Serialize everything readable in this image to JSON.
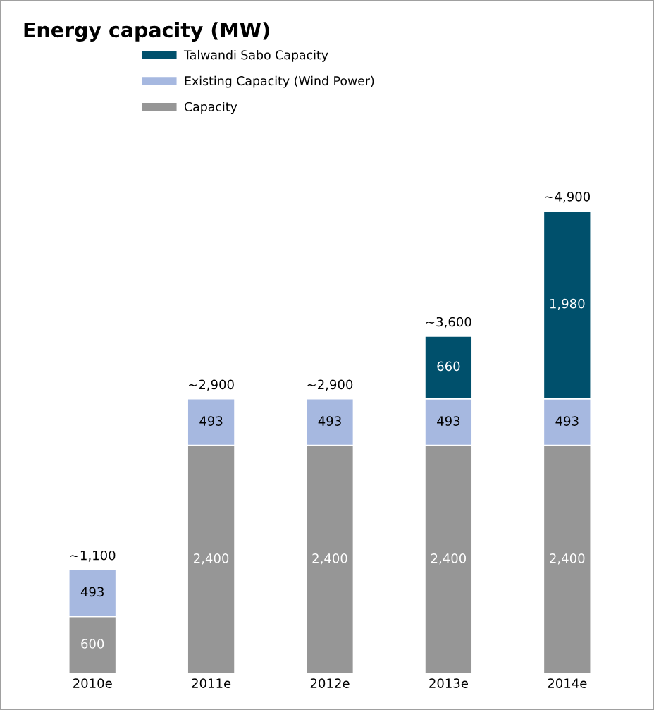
{
  "chart_data": {
    "type": "bar",
    "title": "Energy capacity (MW)",
    "categories": [
      "2010e",
      "2011e",
      "2012e",
      "2013e",
      "2014e"
    ],
    "stacked": true,
    "series": [
      {
        "name": "Capacity",
        "color": "#969696",
        "values": [
          600,
          2400,
          2400,
          2400,
          2400
        ],
        "value_labels": [
          "600",
          "2,400",
          "2,400",
          "2,400",
          "2,400"
        ]
      },
      {
        "name": "Existing Capacity (Wind Power)",
        "color": "#a6b8e0",
        "values": [
          493,
          493,
          493,
          493,
          493
        ],
        "value_labels": [
          "493",
          "493",
          "493",
          "493",
          "493"
        ]
      },
      {
        "name": "Talwandi Sabo Capacity",
        "color": "#00506c",
        "values": [
          null,
          null,
          null,
          660,
          1980
        ],
        "value_labels": [
          null,
          null,
          null,
          "660",
          "1,980"
        ]
      }
    ],
    "annotations": [
      {
        "text": "~1,100",
        "x": "2010e",
        "y": 1093
      },
      {
        "text": "~2,900",
        "x": "2011e",
        "y": 2893
      },
      {
        "text": "~2,900",
        "x": "2012e",
        "y": 2893
      },
      {
        "text": "~3,600",
        "x": "2013e",
        "y": 3553
      },
      {
        "text": "~4,900",
        "x": "2014e",
        "y": 4873
      }
    ],
    "legend": "top",
    "tick_labels": "x"
  }
}
